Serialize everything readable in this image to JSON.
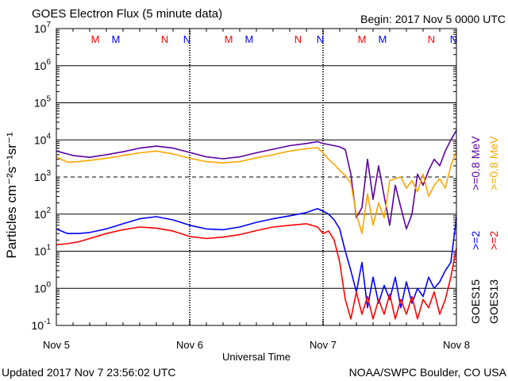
{
  "chart_data": {
    "type": "line",
    "title": "GOES Electron Flux (5 minute data)",
    "begin_label": "Begin: 2017 Nov 5 0000 UTC",
    "xlabel": "Universal Time",
    "ylabel": "Particles cm⁻²s⁻¹sr⁻¹",
    "yscale": "log",
    "ylim": [
      0.1,
      10000000
    ],
    "xlim": [
      0,
      72
    ],
    "x_unit": "hours since 2017 Nov 5 0000 UTC",
    "x_ticks": [
      {
        "x": 0,
        "label": "Nov 5"
      },
      {
        "x": 24,
        "label": "Nov 6"
      },
      {
        "x": 48,
        "label": "Nov 7"
      },
      {
        "x": 72,
        "label": "Nov 8"
      }
    ],
    "y_ticks": [
      {
        "exp": "7"
      },
      {
        "exp": "6"
      },
      {
        "exp": "5"
      },
      {
        "exp": "4"
      },
      {
        "exp": "3"
      },
      {
        "exp": "2"
      },
      {
        "exp": "1"
      },
      {
        "exp": "0"
      },
      {
        "exp": "-1"
      }
    ],
    "alert_threshold": 1000,
    "markers": [
      {
        "x": 7.0,
        "label": "M",
        "color": "#ff0000"
      },
      {
        "x": 10.7,
        "label": "M",
        "color": "#0000ff"
      },
      {
        "x": 19.5,
        "label": "N",
        "color": "#ff0000"
      },
      {
        "x": 23.5,
        "label": "N",
        "color": "#0000ff"
      },
      {
        "x": 31.0,
        "label": "M",
        "color": "#ff0000"
      },
      {
        "x": 34.7,
        "label": "M",
        "color": "#0000ff"
      },
      {
        "x": 43.5,
        "label": "N",
        "color": "#ff0000"
      },
      {
        "x": 47.5,
        "label": "N",
        "color": "#0000ff"
      },
      {
        "x": 55.0,
        "label": "M",
        "color": "#ff0000"
      },
      {
        "x": 58.7,
        "label": "M",
        "color": "#0000ff"
      },
      {
        "x": 67.5,
        "label": "N",
        "color": "#ff0000"
      },
      {
        "x": 71.5,
        "label": "N",
        "color": "#0000ff"
      }
    ],
    "right_labels": [
      {
        "text": "GOES15",
        "color": "#000000",
        "col": 0,
        "row": "bottom"
      },
      {
        "text": ">=2",
        "color": "#0000ff",
        "col": 0,
        "row": "middle"
      },
      {
        "text": ">=0.8 MeV",
        "color": "#5a00a0",
        "col": 0,
        "row": "top"
      },
      {
        "text": "GOES13",
        "color": "#000000",
        "col": 1,
        "row": "bottom"
      },
      {
        "text": ">=2",
        "color": "#ff0000",
        "col": 1,
        "row": "middle"
      },
      {
        "text": ">=0.8 MeV",
        "color": "#ffa500",
        "col": 1,
        "row": "top"
      }
    ],
    "series": [
      {
        "name": "GOES15 >=0.8 MeV",
        "color": "#5a00a0",
        "x": [
          0,
          3,
          6,
          9,
          12,
          15,
          18,
          21,
          24,
          27,
          30,
          33,
          36,
          39,
          42,
          45,
          47,
          48,
          49,
          50,
          51,
          52,
          53,
          54,
          55,
          56,
          57,
          58,
          59,
          60,
          61,
          62,
          63,
          64,
          65,
          66,
          67,
          68,
          69,
          70,
          71,
          72
        ],
        "values": [
          5000,
          3800,
          3400,
          4000,
          4800,
          6000,
          6800,
          6000,
          4600,
          3500,
          3100,
          3500,
          4500,
          5600,
          7000,
          8000,
          9000,
          8000,
          7500,
          7000,
          6500,
          5500,
          1200,
          80,
          150,
          3000,
          250,
          2000,
          300,
          50,
          600,
          150,
          40,
          100,
          1200,
          600,
          1500,
          3000,
          2000,
          5000,
          10000,
          18000
        ]
      },
      {
        "name": "GOES13 >=0.8 MeV",
        "color": "#ffa500",
        "x": [
          0,
          2,
          4,
          6,
          9,
          12,
          15,
          18,
          21,
          24,
          27,
          30,
          33,
          36,
          39,
          42,
          45,
          47,
          48,
          49,
          50,
          51,
          52,
          53,
          54,
          55,
          56,
          57,
          58,
          59,
          60,
          61,
          62,
          63,
          64,
          65,
          66,
          67,
          68,
          69,
          70,
          71,
          72
        ],
        "values": [
          3500,
          2500,
          2600,
          2800,
          3200,
          3800,
          4500,
          5000,
          4200,
          3200,
          2600,
          2400,
          2600,
          3300,
          4000,
          5000,
          5800,
          6200,
          4500,
          3000,
          2200,
          1500,
          1100,
          700,
          100,
          30,
          350,
          50,
          200,
          80,
          800,
          900,
          1000,
          500,
          800,
          400,
          1200,
          300,
          600,
          900,
          500,
          2000,
          5000
        ]
      },
      {
        "name": "GOES15 >=2",
        "color": "#0000ff",
        "x": [
          0,
          2,
          4,
          6,
          9,
          12,
          15,
          18,
          21,
          24,
          27,
          30,
          33,
          36,
          39,
          42,
          45,
          47,
          48,
          49,
          50,
          51,
          52,
          53,
          54,
          55,
          56,
          57,
          58,
          59,
          60,
          61,
          62,
          63,
          64,
          65,
          66,
          67,
          68,
          69,
          70,
          71,
          72
        ],
        "values": [
          40,
          30,
          30,
          32,
          40,
          55,
          75,
          85,
          70,
          50,
          40,
          38,
          45,
          60,
          75,
          90,
          110,
          140,
          120,
          100,
          70,
          40,
          10,
          3,
          0.8,
          5,
          0.3,
          2,
          0.4,
          1.2,
          0.5,
          2,
          0.3,
          1.5,
          0.4,
          1,
          0.6,
          2,
          1,
          1.5,
          3,
          5,
          80
        ]
      },
      {
        "name": "GOES13 >=2",
        "color": "#ff0000",
        "x": [
          0,
          2,
          4,
          6,
          9,
          12,
          15,
          18,
          21,
          24,
          27,
          30,
          33,
          36,
          39,
          42,
          45,
          47,
          48,
          49,
          50,
          51,
          52,
          53,
          54,
          55,
          56,
          57,
          58,
          59,
          60,
          61,
          62,
          63,
          64,
          65,
          66,
          67,
          68,
          69,
          70,
          71,
          72
        ],
        "values": [
          15,
          16,
          18,
          22,
          30,
          38,
          45,
          42,
          35,
          25,
          22,
          24,
          28,
          36,
          45,
          50,
          55,
          45,
          30,
          35,
          20,
          5,
          0.5,
          0.15,
          0.8,
          0.2,
          0.6,
          0.15,
          0.5,
          0.2,
          0.7,
          0.15,
          0.5,
          0.2,
          0.6,
          0.15,
          0.5,
          0.3,
          0.8,
          0.2,
          0.5,
          2,
          12
        ]
      }
    ]
  },
  "footer": {
    "updated": "Updated 2017 Nov  7 23:56:02 UTC",
    "credit": "NOAA/SWPC Boulder, CO USA"
  }
}
